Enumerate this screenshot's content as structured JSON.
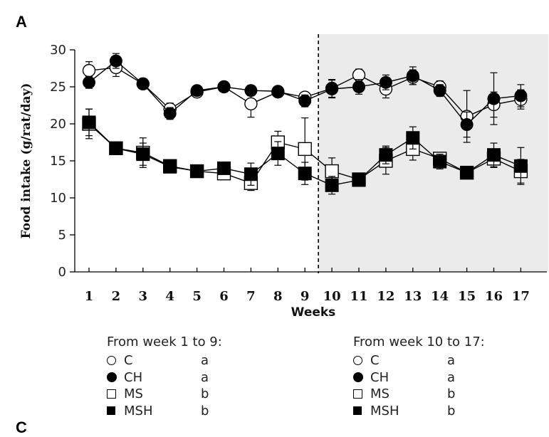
{
  "panel_labels": {
    "top": "A",
    "bottom": "C"
  },
  "legend_left": {
    "title": "From week 1 to 9:",
    "rows": [
      {
        "name": "C",
        "group": "a",
        "symbol": "open-circle"
      },
      {
        "name": "CH",
        "group": "a",
        "symbol": "filled-circle"
      },
      {
        "name": "MS",
        "group": "b",
        "symbol": "open-square"
      },
      {
        "name": "MSH",
        "group": "b",
        "symbol": "filled-square"
      }
    ]
  },
  "legend_right": {
    "title": "From week 10 to 17:",
    "rows": [
      {
        "name": "C",
        "group": "a",
        "symbol": "open-circle"
      },
      {
        "name": "CH",
        "group": "a",
        "symbol": "filled-circle"
      },
      {
        "name": "MS",
        "group": "b",
        "symbol": "open-square"
      },
      {
        "name": "MSH",
        "group": "b",
        "symbol": "filled-square"
      }
    ]
  },
  "chart_data": {
    "type": "line",
    "xlabel": "Weeks",
    "ylabel": "Food intake (g/rat/day)",
    "x": [
      1,
      2,
      3,
      4,
      5,
      6,
      7,
      8,
      9,
      10,
      11,
      12,
      13,
      14,
      15,
      16,
      17
    ],
    "ylim": [
      0,
      30
    ],
    "yticks": [
      0,
      5,
      10,
      15,
      20,
      25,
      30
    ],
    "shaded_region": {
      "from_week": 10,
      "to_week": 17,
      "color": "#ebebeb"
    },
    "divider_between_weeks": [
      9,
      10
    ],
    "series": [
      {
        "name": "C",
        "marker": "open-circle",
        "values": [
          27.2,
          27.6,
          25.4,
          22.0,
          24.3,
          25.0,
          22.7,
          24.3,
          23.6,
          24.8,
          26.6,
          24.7,
          26.3,
          25.0,
          21.0,
          22.6,
          23.3
        ],
        "errors": [
          1.2,
          1.2,
          0.6,
          0.8,
          0.6,
          0.5,
          1.8,
          0.6,
          0.6,
          1.2,
          0.8,
          1.2,
          1.0,
          0.8,
          3.5,
          1.7,
          1.3
        ]
      },
      {
        "name": "CH",
        "marker": "filled-circle",
        "values": [
          25.6,
          28.5,
          25.4,
          21.4,
          24.5,
          25.0,
          24.5,
          24.4,
          23.1,
          24.7,
          25.0,
          25.6,
          26.5,
          24.5,
          19.9,
          23.4,
          23.8
        ],
        "errors": [
          0.8,
          1.0,
          0.7,
          0.8,
          0.6,
          0.5,
          0.7,
          0.6,
          0.8,
          1.2,
          1.0,
          1.0,
          1.2,
          0.8,
          1.7,
          3.5,
          1.5
        ]
      },
      {
        "name": "MS",
        "marker": "open-square",
        "values": [
          20.0,
          16.7,
          16.1,
          14.3,
          13.6,
          13.3,
          12.0,
          17.5,
          16.6,
          13.6,
          12.5,
          15.0,
          16.6,
          15.3,
          13.4,
          15.3,
          13.6
        ],
        "errors": [
          2.0,
          0.8,
          2.0,
          0.8,
          0.6,
          0.6,
          1.0,
          1.5,
          4.2,
          1.8,
          0.8,
          1.8,
          1.5,
          0.8,
          0.6,
          1.2,
          1.6
        ]
      },
      {
        "name": "MSH",
        "marker": "filled-square",
        "values": [
          20.2,
          16.7,
          15.9,
          14.2,
          13.6,
          14.0,
          13.2,
          16.0,
          13.3,
          11.7,
          12.4,
          15.8,
          18.1,
          14.9,
          13.4,
          15.8,
          14.3
        ],
        "errors": [
          1.8,
          0.8,
          1.5,
          0.8,
          0.6,
          0.6,
          1.5,
          1.6,
          1.5,
          1.2,
          0.8,
          1.2,
          1.5,
          1.0,
          0.6,
          1.6,
          2.5
        ]
      }
    ]
  }
}
